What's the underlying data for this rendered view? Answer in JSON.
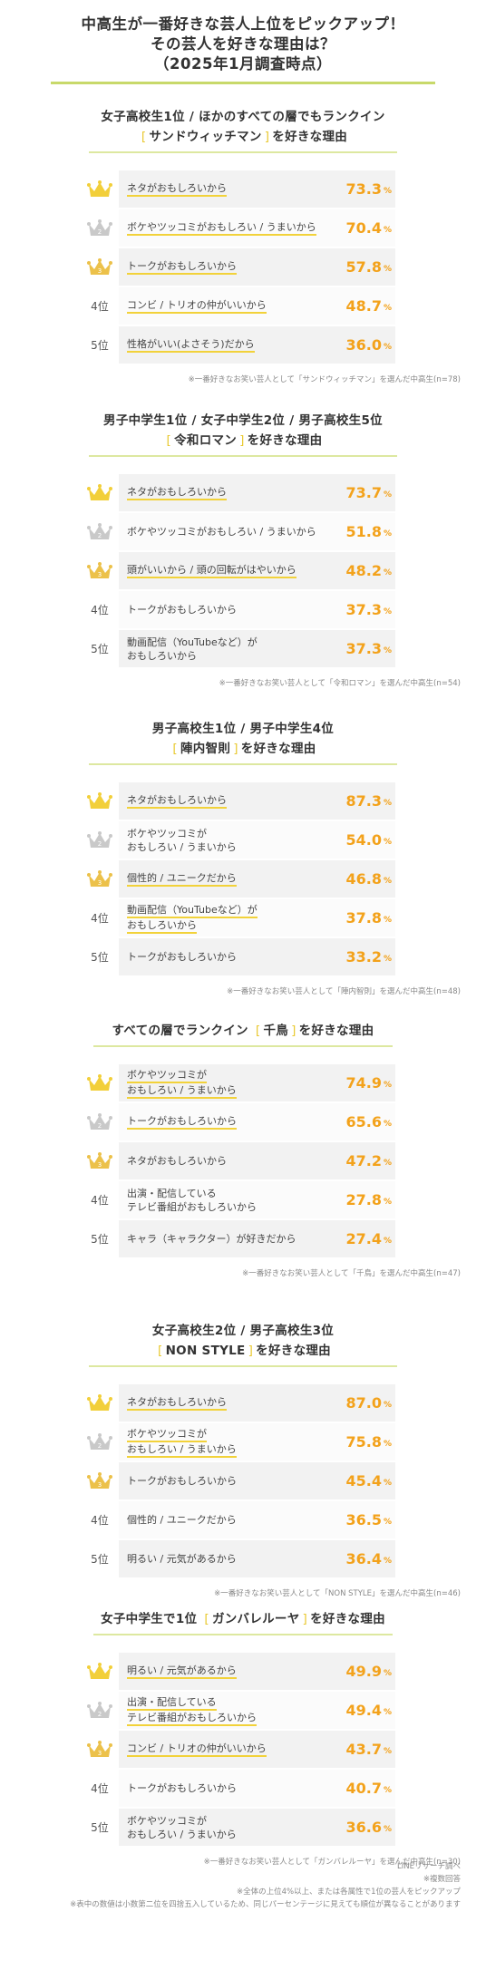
{
  "main_title": {
    "line1": "中高生が一番好きな芸人上位をピックアップ！",
    "line2": "その芸人を好きな理由は？",
    "line3": "（2025年1月調査時点）"
  },
  "percent_unit": "%",
  "chart_data": [
    {
      "type": "bar",
      "title_line1": "女子高校生1位 / ほかのすべての層でもランクイン",
      "title_prefix": "",
      "entertainer": "サンドウィッチマン",
      "title_suffix": "を好きな理由",
      "categories": [
        "ネタがおもしろいから",
        "ボケやツッコミがおもしろい / うまいから",
        "トークがおもしろいから",
        "コンビ / トリオの仲がいいから",
        "性格がいい(よさそう)だから"
      ],
      "values": [
        73.3,
        70.4,
        57.8,
        48.7,
        36.0
      ],
      "value_labels": [
        "73.3",
        "70.4",
        "57.8",
        "48.7",
        "36.0"
      ],
      "ranks": [
        "1位",
        "2位",
        "3位",
        "4位",
        "5位"
      ],
      "note": "※一番好きなお笑い芸人として「サンドウィッチマン」を選んだ中高生(n=78)"
    },
    {
      "type": "bar",
      "title_line1": "男子中学生1位 / 女子中学生2位 / 男子高校生5位",
      "title_prefix": "",
      "entertainer": "令和ロマン",
      "title_suffix": "を好きな理由",
      "categories": [
        "ネタがおもしろいから",
        "ボケやツッコミがおもしろい / うまいから",
        "頭がいいから / 頭の回転がはやいから",
        "トークがおもしろいから",
        "動画配信（YouTubeなど）が|おもしろいから"
      ],
      "values": [
        73.7,
        51.8,
        48.2,
        37.3,
        37.3
      ],
      "value_labels": [
        "73.7",
        "51.8",
        "48.2",
        "37.3",
        "37.3"
      ],
      "ranks": [
        "1位",
        "2位",
        "3位",
        "4位",
        "5位"
      ],
      "note": "※一番好きなお笑い芸人として「令和ロマン」を選んだ中高生(n=54)"
    },
    {
      "type": "bar",
      "title_line1": "男子高校生1位 / 男子中学生4位",
      "title_prefix": "",
      "entertainer": "陣内智則",
      "title_suffix": "を好きな理由",
      "categories": [
        "ネタがおもしろいから",
        "ボケやツッコミが|おもしろい / うまいから",
        "個性的 / ユニークだから",
        "動画配信（YouTubeなど）が|おもしろいから",
        "トークがおもしろいから"
      ],
      "values": [
        87.3,
        54.0,
        46.8,
        37.8,
        33.2
      ],
      "value_labels": [
        "87.3",
        "54.0",
        "46.8",
        "37.8",
        "33.2"
      ],
      "ranks": [
        "1位",
        "2位",
        "3位",
        "4位",
        "5位"
      ],
      "note": "※一番好きなお笑い芸人として「陣内智則」を選んだ中高生(n=48)"
    },
    {
      "type": "bar",
      "title_line1": "",
      "title_prefix": "すべての層でランクイン",
      "entertainer": "千鳥",
      "title_suffix": "を好きな理由",
      "categories": [
        "ボケやツッコミが|おもしろい / うまいから",
        "トークがおもしろいから",
        "ネタがおもしろいから",
        "出演・配信している|テレビ番組がおもしろいから",
        "キャラ（キャラクター）が好きだから"
      ],
      "values": [
        74.9,
        65.6,
        47.2,
        27.8,
        27.4
      ],
      "value_labels": [
        "74.9",
        "65.6",
        "47.2",
        "27.8",
        "27.4"
      ],
      "ranks": [
        "1位",
        "2位",
        "3位",
        "4位",
        "5位"
      ],
      "note": "※一番好きなお笑い芸人として「千鳥」を選んだ中高生(n=47)"
    },
    {
      "type": "bar",
      "title_line1": "女子高校生2位 / 男子高校生3位",
      "title_prefix": "",
      "entertainer": "NON STYLE",
      "title_suffix": "を好きな理由",
      "categories": [
        "ネタがおもしろいから",
        "ボケやツッコミが|おもしろい / うまいから",
        "トークがおもしろいから",
        "個性的 / ユニークだから",
        "明るい / 元気があるから"
      ],
      "values": [
        87.0,
        75.8,
        45.4,
        36.5,
        36.4
      ],
      "value_labels": [
        "87.0",
        "75.8",
        "45.4",
        "36.5",
        "36.4"
      ],
      "ranks": [
        "1位",
        "2位",
        "3位",
        "4位",
        "5位"
      ],
      "note": "※一番好きなお笑い芸人として「NON STYLE」を選んだ中高生(n=46)"
    },
    {
      "type": "bar",
      "title_line1": "",
      "title_prefix": "女子中学生で1位",
      "entertainer": "ガンバレルーヤ",
      "title_suffix": "を好きな理由",
      "categories": [
        "明るい / 元気があるから",
        "出演・配信している|テレビ番組がおもしろいから",
        "コンビ / トリオの仲がいいから",
        "トークがおもしろいから",
        "ボケやツッコミが|おもしろい / うまいから"
      ],
      "values": [
        49.9,
        49.4,
        43.7,
        40.7,
        36.6
      ],
      "value_labels": [
        "49.9",
        "49.4",
        "43.7",
        "40.7",
        "36.6"
      ],
      "ranks": [
        "1位",
        "2位",
        "3位",
        "4位",
        "5位"
      ],
      "note": "※一番好きなお笑い芸人として「ガンバレルーヤ」を選んだ中高生(n=30)"
    }
  ],
  "footer": {
    "line1": "LINEリサーチ調べ",
    "line2": "※複数回答",
    "line3": "※全体の上位4%以上、または各属性で1位の芸人をピックアップ",
    "line4": "※表中の数値は小数第二位を四捨五入しているため、同じパーセンテージに見えても順位が異なることがあります"
  },
  "colors": {
    "accent_value": "#f3a21b",
    "gold_crown": "#f2cf3a",
    "silver_crown": "#c9c9c9",
    "bronze_crown": "#ecc14a",
    "underline": "#f2d23a",
    "title_rule": "#c8d96a"
  }
}
